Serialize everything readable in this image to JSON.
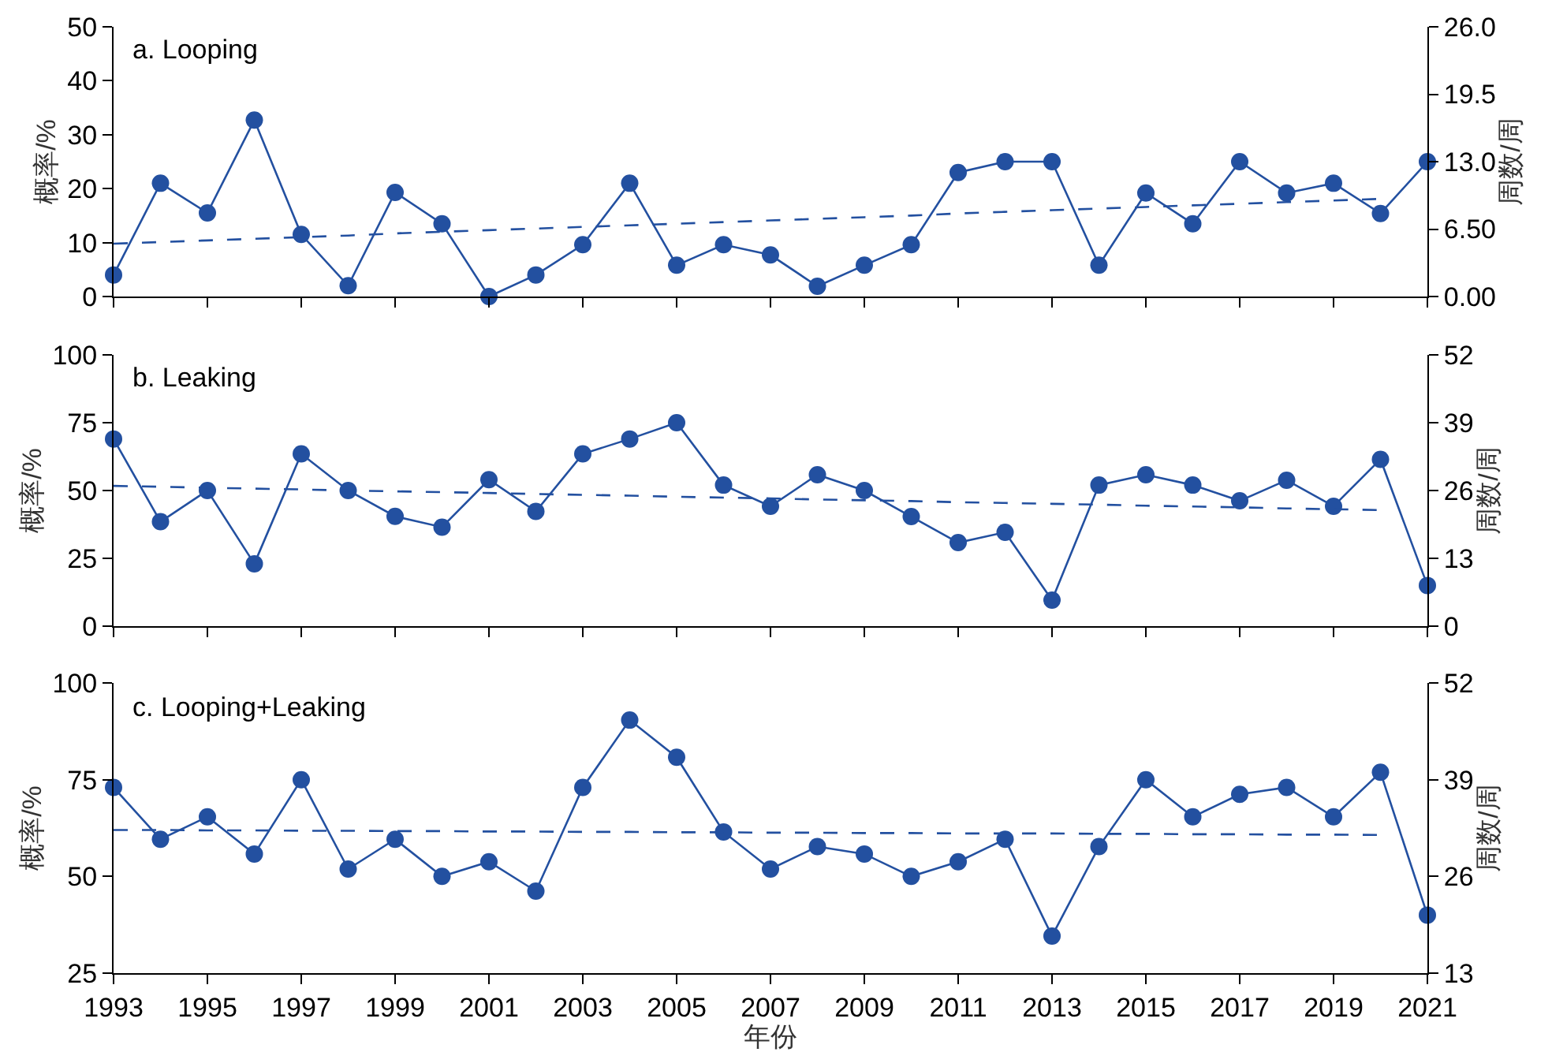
{
  "chart_data": [
    {
      "type": "line",
      "title": "a. Looping",
      "ylabel": "概率/%",
      "y2label": "周数/周",
      "x": [
        1993,
        1994,
        1995,
        1996,
        1997,
        1998,
        1999,
        2000,
        2001,
        2002,
        2003,
        2004,
        2005,
        2006,
        2007,
        2008,
        2009,
        2010,
        2011,
        2012,
        2013,
        2014,
        2015,
        2016,
        2017,
        2018,
        2019,
        2020,
        2021
      ],
      "series": [
        {
          "color": "#2350a0",
          "marker": "circle",
          "line_style": "solid",
          "values": [
            4,
            21,
            15.5,
            32.7,
            11.5,
            2,
            19.3,
            13.5,
            0,
            4,
            9.6,
            21,
            5.8,
            9.6,
            7.7,
            1.9,
            5.8,
            9.6,
            23,
            25,
            25,
            5.8,
            19.2,
            13.5,
            25,
            19.2,
            21,
            15.4,
            25
          ]
        },
        {
          "type": "line",
          "color": "#2350a0",
          "marker": "none",
          "line_style": "dashed",
          "values": [
            9.8,
            10.1,
            10.4,
            10.7,
            11.0,
            11.3,
            11.7,
            12.0,
            12.3,
            12.6,
            12.9,
            13.2,
            13.5,
            13.8,
            14.1,
            14.4,
            14.7,
            15.0,
            15.4,
            15.7,
            16.0,
            16.3,
            16.6,
            16.9,
            17.2,
            17.5,
            17.8,
            18.1,
            null
          ]
        }
      ],
      "xlim": [
        1993,
        2021
      ],
      "xticks": [
        1993,
        1995,
        1997,
        1999,
        2001,
        2003,
        2005,
        2007,
        2009,
        2011,
        2013,
        2015,
        2017,
        2019,
        2021
      ],
      "ylim": [
        0,
        50
      ],
      "yticks": [
        0,
        10,
        20,
        30,
        40,
        50
      ],
      "y2lim": [
        0,
        26
      ],
      "y2ticks": [
        {
          "value": 0,
          "label": "0.00"
        },
        {
          "value": 6.5,
          "label": "6.50"
        },
        {
          "value": 13,
          "label": "13.0"
        },
        {
          "value": 19.5,
          "label": "19.5"
        },
        {
          "value": 26,
          "label": "26.0"
        }
      ],
      "tick_labels": "y",
      "grid": false
    },
    {
      "type": "line",
      "title": "b. Leaking",
      "ylabel": "概率/%",
      "y2label": "周数/周",
      "x": [
        1993,
        1994,
        1995,
        1996,
        1997,
        1998,
        1999,
        2000,
        2001,
        2002,
        2003,
        2004,
        2005,
        2006,
        2007,
        2008,
        2009,
        2010,
        2011,
        2012,
        2013,
        2014,
        2015,
        2016,
        2017,
        2018,
        2019,
        2020,
        2021
      ],
      "series": [
        {
          "color": "#2350a0",
          "marker": "circle",
          "line_style": "solid",
          "values": [
            69,
            38.5,
            50,
            23,
            63.5,
            50,
            40.5,
            36.5,
            54,
            42.3,
            63.5,
            69,
            75,
            52,
            44.2,
            55.8,
            50,
            40.4,
            30.8,
            34.6,
            9.6,
            52,
            55.8,
            52,
            46.2,
            53.8,
            44.2,
            61.5,
            15
          ]
        },
        {
          "type": "line",
          "color": "#2350a0",
          "marker": "none",
          "line_style": "dashed",
          "values": [
            51.7,
            51.4,
            51.0,
            50.7,
            50.4,
            50.0,
            49.7,
            49.4,
            49.1,
            48.7,
            48.4,
            48.1,
            47.7,
            47.4,
            47.1,
            46.7,
            46.4,
            46.1,
            45.7,
            45.4,
            45.1,
            44.8,
            44.4,
            44.1,
            43.8,
            43.4,
            43.1,
            42.8,
            null
          ]
        }
      ],
      "xlim": [
        1993,
        2021
      ],
      "xticks": [
        1993,
        1995,
        1997,
        1999,
        2001,
        2003,
        2005,
        2007,
        2009,
        2011,
        2013,
        2015,
        2017,
        2019,
        2021
      ],
      "ylim": [
        0,
        100
      ],
      "yticks": [
        0,
        25,
        50,
        75,
        100
      ],
      "y2lim": [
        0,
        52
      ],
      "y2ticks": [
        0,
        13,
        26,
        39,
        52
      ],
      "tick_labels": "y",
      "grid": false
    },
    {
      "type": "line",
      "title": "c. Looping+Leaking",
      "xlabel": "年份",
      "ylabel": "概率/%",
      "y2label": "周数/周",
      "x": [
        1993,
        1994,
        1995,
        1996,
        1997,
        1998,
        1999,
        2000,
        2001,
        2002,
        2003,
        2004,
        2005,
        2006,
        2007,
        2008,
        2009,
        2010,
        2011,
        2012,
        2013,
        2014,
        2015,
        2016,
        2017,
        2018,
        2019,
        2020,
        2021
      ],
      "series": [
        {
          "color": "#2350a0",
          "marker": "circle",
          "line_style": "solid",
          "values": [
            73,
            59.6,
            65.4,
            55.8,
            75,
            51.9,
            59.6,
            50,
            53.8,
            46.2,
            73,
            90.4,
            80.8,
            61.5,
            51.9,
            57.7,
            55.8,
            50,
            53.8,
            59.6,
            34.6,
            57.7,
            75,
            65.4,
            71.2,
            73,
            65.4,
            76.9,
            40
          ]
        },
        {
          "type": "line",
          "color": "#2350a0",
          "marker": "none",
          "line_style": "dashed",
          "values": [
            62.0,
            62.0,
            61.9,
            61.9,
            61.8,
            61.8,
            61.7,
            61.7,
            61.6,
            61.6,
            61.5,
            61.5,
            61.4,
            61.4,
            61.3,
            61.3,
            61.2,
            61.2,
            61.1,
            61.1,
            61.1,
            61.0,
            61.0,
            60.9,
            60.9,
            60.8,
            60.8,
            60.7,
            null
          ]
        }
      ],
      "xlim": [
        1993,
        2021
      ],
      "xticks": [
        1993,
        1995,
        1997,
        1999,
        2001,
        2003,
        2005,
        2007,
        2009,
        2011,
        2013,
        2015,
        2017,
        2019,
        2021
      ],
      "ylim": [
        25,
        100
      ],
      "yticks": [
        25,
        50,
        75,
        100
      ],
      "y2lim": [
        13,
        52
      ],
      "y2ticks": [
        13,
        26,
        39,
        52
      ],
      "grid": false
    }
  ]
}
